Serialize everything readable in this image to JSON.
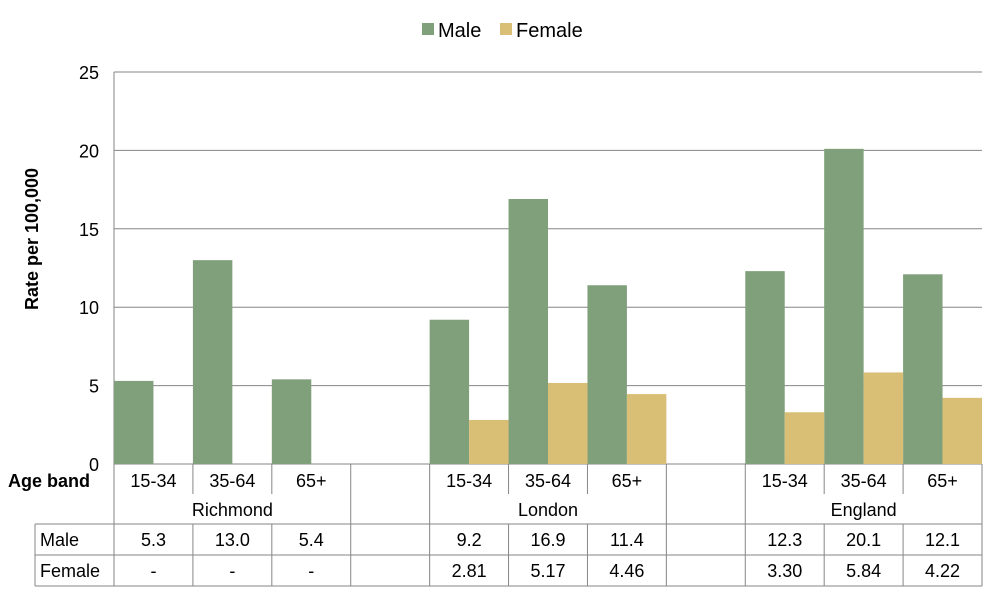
{
  "chart_data": {
    "type": "bar",
    "ylabel": "Rate per 100,000",
    "ylim": [
      0,
      25
    ],
    "yticks": [
      0,
      5,
      10,
      15,
      20,
      25
    ],
    "grid": true,
    "legend_position": "top-center",
    "category_axis_label": "Age band",
    "groups": [
      {
        "name": "Richmond",
        "bands": [
          "15-34",
          "35-64",
          "65+"
        ]
      },
      {
        "name": "London",
        "bands": [
          "15-34",
          "35-64",
          "65+"
        ]
      },
      {
        "name": "England",
        "bands": [
          "15-34",
          "35-64",
          "65+"
        ]
      }
    ],
    "series": [
      {
        "name": "Male",
        "color": "#7fa07a",
        "values": [
          5.3,
          13.0,
          5.4,
          null,
          9.2,
          16.9,
          11.4,
          null,
          12.3,
          20.1,
          12.1
        ],
        "labels": [
          "5.3",
          "13.0",
          "5.4",
          "",
          "9.2",
          "16.9",
          "11.4",
          "",
          "12.3",
          "20.1",
          "12.1"
        ]
      },
      {
        "name": "Female",
        "color": "#d9bf76",
        "values": [
          null,
          null,
          null,
          null,
          2.81,
          5.17,
          4.46,
          null,
          3.3,
          5.84,
          4.22
        ],
        "labels": [
          "-",
          "-",
          "-",
          "",
          "2.81",
          "5.17",
          "4.46",
          "",
          "3.30",
          "5.84",
          "4.22"
        ]
      }
    ]
  }
}
